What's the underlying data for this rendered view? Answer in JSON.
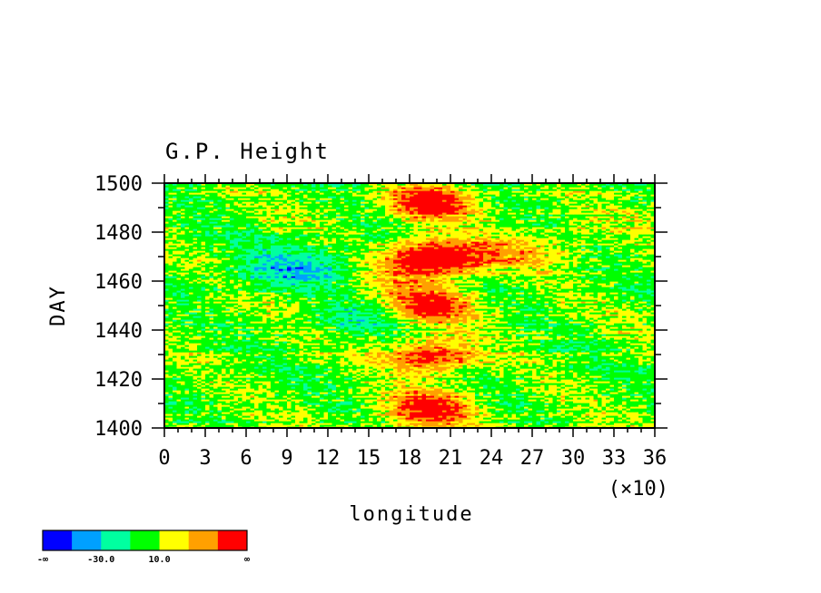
{
  "chart_data": {
    "type": "heatmap",
    "title": "G.P. Height",
    "xlabel": "longitude",
    "ylabel": "DAY",
    "x_scale_note": "(×10)",
    "x_ticks": [
      "0",
      "3",
      "6",
      "9",
      "12",
      "15",
      "18",
      "21",
      "24",
      "27",
      "30",
      "33",
      "36"
    ],
    "y_ticks": [
      "1400",
      "1420",
      "1440",
      "1460",
      "1480",
      "1500"
    ],
    "xlim": [
      0,
      360
    ],
    "ylim": [
      1400,
      1500
    ],
    "colorbar": {
      "colors": [
        "#0000ff",
        "#00a0ff",
        "#00ffa0",
        "#00ff00",
        "#ffff00",
        "#ffa000",
        "#ff0000"
      ],
      "labels": [
        "-∞",
        "-30.0",
        "10.0",
        "∞"
      ]
    }
  }
}
